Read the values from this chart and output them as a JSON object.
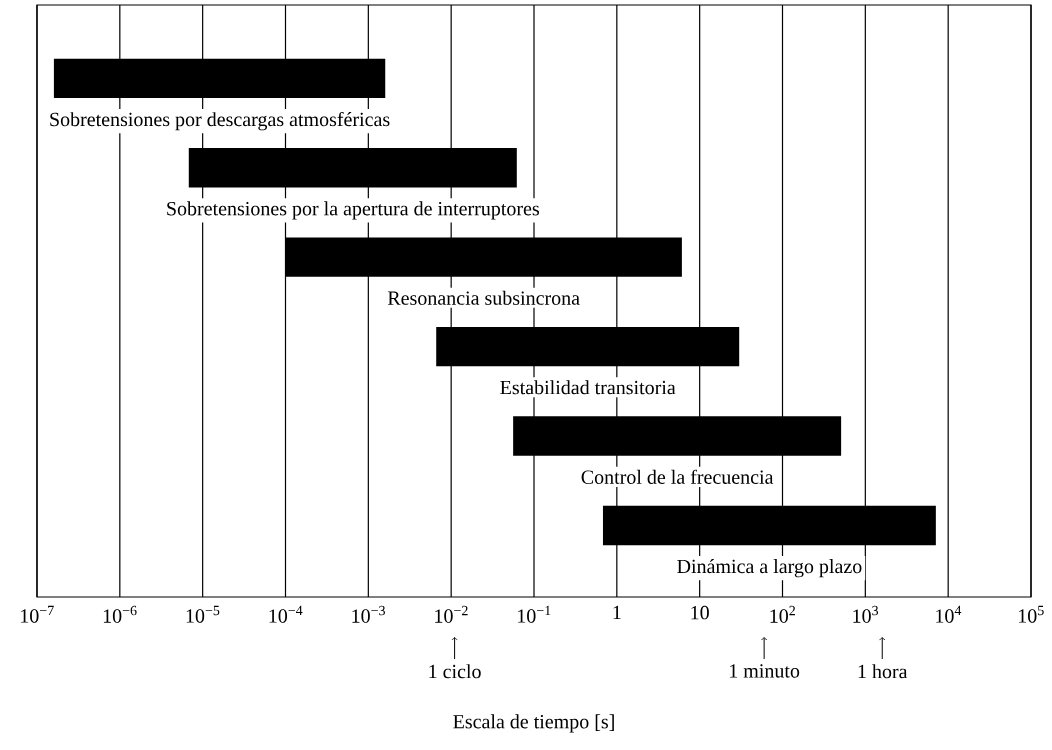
{
  "chart_data": {
    "type": "bar",
    "orientation": "horizontal",
    "xlabel": "Escala de tiempo [s]",
    "categories": [
      "Sobretensiones por descargas atmosféricas",
      "Sobretensiones por la apertura de interruptores",
      "Resonancia subsincrona",
      "Estabilidad transitoria",
      "Control de la frecuencia",
      "Dinámica a largo plazo"
    ],
    "base": [
      1.6e-07,
      6.8e-06,
      0.0001,
      0.0066,
      0.056,
      0.68
    ],
    "values": [
      0.0016,
      0.062,
      6.1,
      30,
      510,
      7100
    ],
    "color": "#000000",
    "log": "x",
    "grid": "x",
    "xlim": [
      1e-07,
      100000
    ],
    "xticks": [
      {
        "value": 1e-07,
        "label": "10$^{−7}$"
      },
      {
        "value": 1e-06,
        "label": "10$^{−6}$"
      },
      {
        "value": 1e-05,
        "label": "10$^{−5}$"
      },
      {
        "value": 0.0001,
        "label": "10$^{−4}$"
      },
      {
        "value": 0.001,
        "label": "10$^{−3}$"
      },
      {
        "value": 0.01,
        "label": "10$^{−2}$"
      },
      {
        "value": 0.1,
        "label": "10$^{−1}$"
      },
      1,
      10,
      {
        "value": 100,
        "label": "10$^{2}$"
      },
      {
        "value": 1000,
        "label": "10$^{3}$"
      },
      {
        "value": 10000,
        "label": "10$^{4}$"
      },
      {
        "value": 100000,
        "label": "10$^{5}$"
      }
    ],
    "ref_lines": [
      {
        "axis": "x",
        "value": 0.011,
        "label": "1 ciclo"
      },
      {
        "axis": "x",
        "value": 60,
        "label": "1 minuto"
      },
      {
        "axis": "x",
        "value": 1600,
        "label": "1 hora"
      }
    ]
  }
}
